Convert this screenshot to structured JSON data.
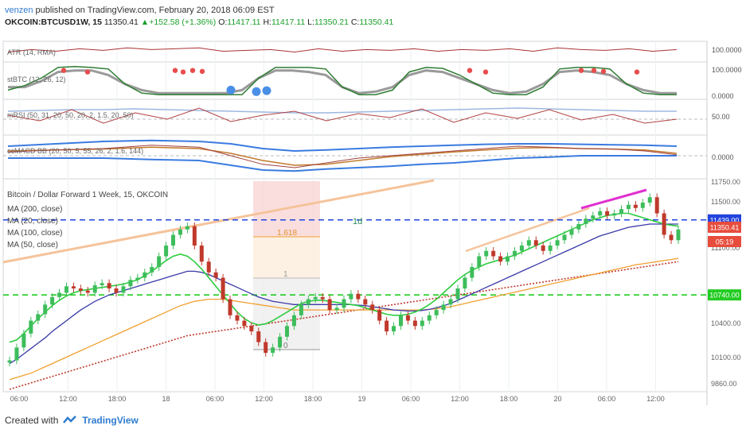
{
  "header": {
    "user": "venzen",
    "published": " published on TradingView.com, February 20, 2018 06:09 EST",
    "symbol": "OKCOIN:BTCUSD1W, 15",
    "last": "11350.41",
    "change": "+152.58 (+1.36%)",
    "o_label": "O:",
    "o": "11417.11",
    "h_label": "H:",
    "h": "11417.11",
    "l_label": "L:",
    "l": "11350.21",
    "c_label": "C:",
    "c": "11350.41"
  },
  "footer": {
    "created": "Created with",
    "brand": "TradingView"
  },
  "colors": {
    "candle_up": "#3dbd5b",
    "candle_down": "#c0392b",
    "ma20": "#2ecc40",
    "ma50": "#3a3aa8",
    "ma100": "#f0a030",
    "ma200": "#c0392b",
    "hline_blue": "#2244dd",
    "hline_green": "#22cc22"
  },
  "chart_data": [
    {
      "type": "line",
      "pane": "atr",
      "label": "ATR (14, RMA)",
      "yticks": [
        "100.0000"
      ],
      "x": [
        0,
        30,
        60,
        90,
        120,
        150,
        180,
        210,
        240,
        270,
        300,
        330,
        360,
        390,
        420,
        450,
        480,
        510,
        540,
        570,
        600,
        630,
        660,
        690,
        720,
        750,
        780,
        810,
        840
      ],
      "values": [
        92,
        95,
        93,
        96,
        94,
        97,
        95,
        96,
        97,
        93,
        94,
        95,
        92,
        96,
        93,
        95,
        94,
        96,
        93,
        95,
        94,
        96,
        93,
        97,
        95,
        94,
        96,
        93,
        95
      ]
    },
    {
      "type": "line",
      "pane": "stbtc",
      "label": "stBTC (12, 26, 12)",
      "yticks": [
        "100.0000",
        "0.0000"
      ],
      "green": [
        20,
        35,
        60,
        95,
        98,
        95,
        90,
        40,
        10,
        5,
        5,
        5,
        5,
        5,
        5,
        60,
        95,
        95,
        95,
        90,
        30,
        5,
        5,
        20,
        80,
        95,
        92,
        70,
        40,
        10,
        5,
        5,
        30,
        90,
        95,
        95,
        90,
        40,
        10,
        5,
        5
      ],
      "gray": [
        30,
        30,
        50,
        80,
        85,
        85,
        70,
        40,
        20,
        10,
        10,
        10,
        10,
        10,
        20,
        60,
        85,
        85,
        80,
        70,
        30,
        10,
        15,
        30,
        70,
        85,
        80,
        60,
        40,
        20,
        10,
        15,
        40,
        80,
        85,
        80,
        70,
        40,
        20,
        10,
        10
      ],
      "red_dots": [
        [
          70,
          85
        ],
        [
          100,
          80
        ],
        [
          210,
          85
        ],
        [
          220,
          80
        ],
        [
          232,
          85
        ],
        [
          244,
          82
        ],
        [
          580,
          85
        ],
        [
          600,
          80
        ],
        [
          720,
          85
        ],
        [
          736,
          85
        ],
        [
          748,
          82
        ],
        [
          790,
          80
        ]
      ],
      "blue_dots": [
        [
          280,
          20
        ],
        [
          312,
          15
        ],
        [
          325,
          18
        ]
      ]
    },
    {
      "type": "line",
      "pane": "mrsi",
      "label": "mRSI (50, 31, 20, 50, 20, 2, 1.5, 20, 50)",
      "yticks": [
        "50.00"
      ],
      "x": [
        0,
        40,
        80,
        120,
        160,
        200,
        240,
        280,
        320,
        360,
        400,
        440,
        480,
        520,
        560,
        600,
        640,
        680,
        720,
        760,
        800,
        840
      ],
      "red": [
        55,
        48,
        62,
        45,
        58,
        50,
        64,
        47,
        55,
        60,
        48,
        57,
        52,
        63,
        46,
        58,
        51,
        62,
        49,
        56,
        45,
        50
      ],
      "blue": [
        60,
        61,
        62,
        62,
        63,
        62,
        61,
        60,
        59,
        58,
        58,
        59,
        60,
        61,
        62,
        63,
        64,
        63,
        62,
        61,
        60,
        60
      ]
    },
    {
      "type": "line",
      "pane": "macd",
      "label": "ccMACD BB (20, 50, 5, 55, 26, 2, 1.6, 144)",
      "yticks": [
        "0.0000"
      ],
      "x": [
        0,
        60,
        120,
        180,
        240,
        280,
        320,
        360,
        400,
        440,
        480,
        520,
        560,
        600,
        640,
        680,
        720,
        760,
        800,
        840
      ],
      "upper": [
        20,
        25,
        30,
        32,
        30,
        25,
        15,
        10,
        12,
        15,
        18,
        20,
        22,
        24,
        25,
        25,
        24,
        23,
        22,
        20
      ],
      "lower": [
        -5,
        -5,
        -5,
        -8,
        -10,
        -20,
        -30,
        -32,
        -28,
        -25,
        -22,
        -18,
        -15,
        -10,
        -5,
        -3,
        0,
        0,
        0,
        0
      ],
      "fast": [
        8,
        12,
        15,
        22,
        18,
        0,
        -18,
        -25,
        -15,
        -5,
        0,
        5,
        10,
        15,
        20,
        18,
        15,
        14,
        10,
        2
      ],
      "slow": [
        10,
        12,
        14,
        18,
        15,
        5,
        -10,
        -20,
        -18,
        -10,
        -2,
        3,
        8,
        12,
        16,
        17,
        15,
        14,
        12,
        5
      ]
    },
    {
      "type": "line",
      "pane": "price",
      "title": "Bitcoin / Dollar Forward 1 Week, 15, OKCOIN",
      "legend": [
        "MA (200, close)",
        "MA (20, close)",
        "MA (100, close)",
        "MA (50, close)"
      ],
      "yticks": [
        "11750.00",
        "11500.00",
        "11100.00",
        "10400.00",
        "10100.00",
        "9860.00"
      ],
      "price_labels": [
        "11439.00",
        "11350.41",
        "05:19",
        "10740.00"
      ],
      "xlabels": [
        "06:00",
        "12:00",
        "18:00",
        "18",
        "06:00",
        "12:00",
        "18:00",
        "19",
        "06:00",
        "12:00",
        "18:00",
        "20",
        "06:00",
        "12:00"
      ],
      "fib_labels": [
        "1.618",
        "1",
        "0"
      ],
      "annotation": "1d",
      "hline_blue": 11439,
      "hline_green": 10740,
      "ylim": [
        9860,
        11800
      ],
      "close": [
        10130,
        10250,
        10380,
        10500,
        10560,
        10650,
        10720,
        10760,
        10820,
        10800,
        10780,
        10760,
        10830,
        10850,
        10800,
        10760,
        10820,
        10880,
        10900,
        10950,
        11000,
        11100,
        11200,
        11300,
        11350,
        11380,
        11200,
        11050,
        10950,
        10900,
        10700,
        10550,
        10500,
        10450,
        10400,
        10300,
        10200,
        10250,
        10350,
        10450,
        10550,
        10650,
        10700,
        10720,
        10700,
        10600,
        10620,
        10700,
        10750,
        10700,
        10650,
        10600,
        10500,
        10400,
        10450,
        10550,
        10500,
        10450,
        10500,
        10550,
        10600,
        10650,
        10700,
        10800,
        10900,
        11000,
        11100,
        11150,
        11100,
        11050,
        11100,
        11150,
        11200,
        11250,
        11200,
        11150,
        11200,
        11250,
        11300,
        11350,
        11400,
        11450,
        11480,
        11520,
        11480,
        11500,
        11540,
        11580,
        11550,
        11600,
        11650,
        11500,
        11300,
        11250,
        11350
      ],
      "ma20": [
        10300,
        10320,
        10380,
        10450,
        10520,
        10580,
        10640,
        10690,
        10730,
        10760,
        10780,
        10790,
        10800,
        10810,
        10820,
        10830,
        10840,
        10860,
        10880,
        10920,
        10960,
        11010,
        11060,
        11100,
        11120,
        11100,
        11050,
        10980,
        10900,
        10820,
        10740,
        10660,
        10580,
        10520,
        10480,
        10460,
        10470,
        10500,
        10540,
        10580,
        10620,
        10660,
        10680,
        10690,
        10690,
        10680,
        10670,
        10660,
        10650,
        10640,
        10620,
        10600,
        10580,
        10560,
        10550,
        10550,
        10560,
        10580,
        10610,
        10650,
        10700,
        10760,
        10820,
        10880,
        10930,
        10970,
        11000,
        11030,
        11050,
        11070,
        11090,
        11110,
        11140,
        11170,
        11200,
        11230,
        11260,
        11290,
        11320,
        11350,
        11380,
        11410,
        11440,
        11460,
        11480,
        11490,
        11500,
        11500,
        11480,
        11460,
        11440,
        11420,
        11400,
        11390,
        11380
      ],
      "ma50": [
        10100,
        10140,
        10190,
        10240,
        10290,
        10340,
        10400,
        10450,
        10500,
        10550,
        10600,
        10640,
        10680,
        10710,
        10740,
        10760,
        10780,
        10800,
        10820,
        10840,
        10860,
        10880,
        10900,
        10920,
        10940,
        10960,
        10960,
        10950,
        10930,
        10900,
        10870,
        10840,
        10810,
        10780,
        10750,
        10720,
        10700,
        10680,
        10670,
        10660,
        10650,
        10650,
        10650,
        10650,
        10650,
        10650,
        10650,
        10650,
        10650,
        10645,
        10640,
        10630,
        10620,
        10610,
        10600,
        10595,
        10590,
        10590,
        10595,
        10605,
        10620,
        10640,
        10660,
        10690,
        10720,
        10750,
        10780,
        10810,
        10840,
        10870,
        10900,
        10930,
        10960,
        10990,
        11020,
        11050,
        11080,
        11110,
        11140,
        11170,
        11200,
        11230,
        11260,
        11290,
        11310,
        11330,
        11350,
        11370,
        11380,
        11390,
        11400,
        11400,
        11400,
        11400,
        11400
      ],
      "ma100": [
        9950,
        9970,
        9990,
        10010,
        10040,
        10070,
        10100,
        10130,
        10160,
        10190,
        10220,
        10250,
        10280,
        10310,
        10340,
        10370,
        10400,
        10430,
        10460,
        10490,
        10520,
        10550,
        10580,
        10610,
        10640,
        10660,
        10680,
        10690,
        10700,
        10700,
        10700,
        10690,
        10680,
        10670,
        10660,
        10650,
        10640,
        10630,
        10620,
        10610,
        10600,
        10600,
        10600,
        10600,
        10600,
        10600,
        10600,
        10600,
        10600,
        10600,
        10600,
        10600,
        10600,
        10600,
        10600,
        10600,
        10600,
        10600,
        10600,
        10605,
        10610,
        10620,
        10630,
        10645,
        10660,
        10675,
        10690,
        10705,
        10720,
        10735,
        10750,
        10765,
        10780,
        10795,
        10810,
        10825,
        10840,
        10855,
        10870,
        10885,
        10900,
        10915,
        10930,
        10945,
        10960,
        10975,
        10990,
        11005,
        11020,
        11030,
        11040,
        11050,
        11060,
        11070,
        11080
      ],
      "ma200": [
        9860,
        9880,
        9900,
        9920,
        9940,
        9960,
        9980,
        10000,
        10020,
        10040,
        10060,
        10080,
        10100,
        10120,
        10140,
        10160,
        10180,
        10200,
        10220,
        10240,
        10260,
        10280,
        10300,
        10320,
        10340,
        10360,
        10370,
        10380,
        10390,
        10400,
        10410,
        10420,
        10430,
        10440,
        10450,
        10460,
        10470,
        10480,
        10490,
        10500,
        10510,
        10520,
        10530,
        10540,
        10550,
        10560,
        10570,
        10580,
        10590,
        10600,
        10610,
        10620,
        10630,
        10640,
        10650,
        10660,
        10670,
        10680,
        10690,
        10700,
        10710,
        10720,
        10730,
        10740,
        10750,
        10760,
        10770,
        10780,
        10790,
        10800,
        10810,
        10820,
        10830,
        10840,
        10850,
        10860,
        10870,
        10880,
        10890,
        10900,
        10910,
        10920,
        10930,
        10940,
        10950,
        10960,
        10970,
        10980,
        10990,
        11000,
        11010,
        11020,
        11030,
        11040,
        11050
      ]
    }
  ]
}
